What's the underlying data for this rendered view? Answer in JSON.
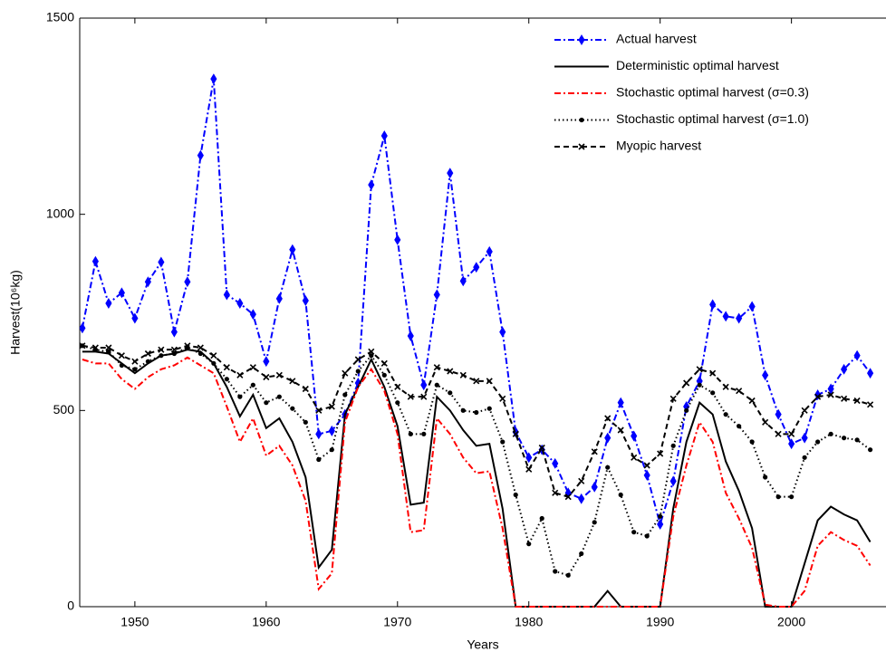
{
  "chart_data": {
    "type": "line",
    "x_label": "Years",
    "y_label": "Harvest(10⁶kg)",
    "x": [
      1946,
      1947,
      1948,
      1949,
      1950,
      1951,
      1952,
      1953,
      1954,
      1955,
      1956,
      1957,
      1958,
      1959,
      1960,
      1961,
      1962,
      1963,
      1964,
      1965,
      1966,
      1967,
      1968,
      1969,
      1970,
      1971,
      1972,
      1973,
      1974,
      1975,
      1976,
      1977,
      1978,
      1979,
      1980,
      1981,
      1982,
      1983,
      1984,
      1985,
      1986,
      1987,
      1988,
      1989,
      1990,
      1991,
      1992,
      1993,
      1994,
      1995,
      1996,
      1997,
      1998,
      1999,
      2000,
      2001,
      2002,
      2003,
      2004,
      2005,
      2006
    ],
    "xlim": [
      1945.8,
      2007.2
    ],
    "xticks": [
      1950,
      1960,
      1970,
      1980,
      1990,
      2000
    ],
    "ylim": [
      0,
      1500
    ],
    "yticks": [
      0,
      500,
      1000,
      1500
    ],
    "series": [
      {
        "name": "Actual harvest",
        "color": "#0000ff",
        "dash": "7,3,2,3",
        "marker": "diamond",
        "values": [
          710,
          880,
          773,
          800,
          735,
          828,
          878,
          700,
          828,
          1150,
          1345,
          795,
          773,
          745,
          625,
          785,
          910,
          780,
          440,
          448,
          490,
          570,
          1075,
          1200,
          935,
          690,
          565,
          795,
          1105,
          830,
          865,
          905,
          700,
          445,
          380,
          400,
          365,
          290,
          275,
          305,
          430,
          520,
          435,
          335,
          210,
          320,
          510,
          575,
          770,
          740,
          735,
          765,
          590,
          490,
          415,
          430,
          540,
          555,
          605,
          640,
          595
        ]
      },
      {
        "name": "Deterministic optimal harvest",
        "color": "#000000",
        "dash": "none",
        "marker": "none",
        "values": [
          650,
          650,
          645,
          620,
          595,
          620,
          640,
          645,
          655,
          650,
          620,
          560,
          485,
          540,
          455,
          480,
          420,
          330,
          100,
          145,
          490,
          560,
          630,
          560,
          460,
          260,
          265,
          535,
          500,
          450,
          410,
          415,
          250,
          0,
          0,
          0,
          0,
          0,
          0,
          0,
          40,
          0,
          0,
          0,
          0,
          250,
          420,
          520,
          490,
          370,
          295,
          200,
          0,
          0,
          0,
          110,
          220,
          255,
          235,
          220,
          165
        ]
      },
      {
        "name": "Stochastic optimal harvest (σ=0.3)",
        "color": "#ff0000",
        "dash": "7,3,2,3",
        "marker": "none",
        "values": [
          630,
          620,
          620,
          580,
          555,
          585,
          605,
          615,
          635,
          615,
          595,
          510,
          420,
          480,
          385,
          410,
          360,
          270,
          45,
          85,
          470,
          560,
          605,
          550,
          440,
          190,
          195,
          480,
          440,
          380,
          340,
          345,
          200,
          0,
          0,
          0,
          0,
          0,
          0,
          0,
          0,
          0,
          0,
          0,
          0,
          230,
          360,
          470,
          420,
          290,
          225,
          150,
          5,
          0,
          0,
          40,
          155,
          190,
          170,
          155,
          105
        ]
      },
      {
        "name": "Stochastic optimal harvest (σ=1.0)",
        "color": "#000000",
        "dash": "1.5,3",
        "marker": "circle",
        "values": [
          665,
          655,
          650,
          615,
          605,
          625,
          640,
          645,
          660,
          645,
          620,
          580,
          535,
          565,
          520,
          535,
          505,
          470,
          375,
          400,
          540,
          600,
          640,
          590,
          520,
          440,
          440,
          565,
          545,
          500,
          495,
          505,
          420,
          285,
          160,
          225,
          90,
          80,
          135,
          215,
          355,
          285,
          190,
          180,
          230,
          410,
          500,
          565,
          545,
          490,
          460,
          420,
          330,
          280,
          280,
          380,
          420,
          440,
          430,
          425,
          400
        ]
      },
      {
        "name": "Myopic harvest",
        "color": "#000000",
        "dash": "6,4",
        "marker": "cross",
        "values": [
          665,
          660,
          660,
          640,
          625,
          645,
          655,
          655,
          665,
          660,
          640,
          610,
          590,
          610,
          585,
          590,
          575,
          555,
          500,
          510,
          595,
          630,
          650,
          620,
          560,
          535,
          535,
          610,
          600,
          590,
          575,
          575,
          530,
          440,
          350,
          405,
          290,
          280,
          320,
          395,
          480,
          450,
          380,
          360,
          390,
          530,
          570,
          605,
          595,
          560,
          550,
          525,
          470,
          440,
          440,
          500,
          535,
          540,
          530,
          525,
          515
        ]
      }
    ]
  }
}
